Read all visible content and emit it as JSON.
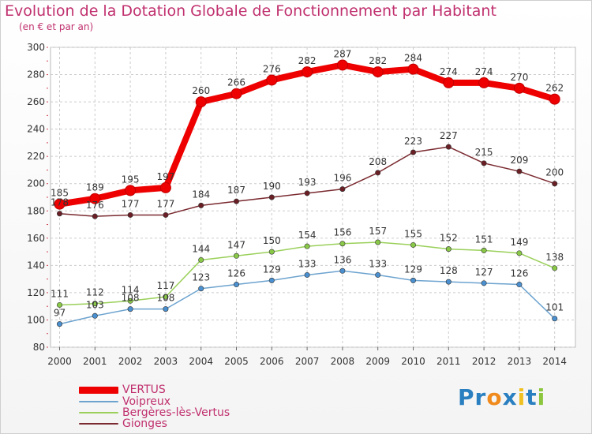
{
  "title": "Evolution de la Dotation Globale de Fonctionnement par Habitant",
  "subtitle": "(en € et par an)",
  "brand": {
    "parts": [
      "Pr",
      "o",
      "x",
      "i",
      "t",
      "i"
    ],
    "colors": [
      "#2a7fc0",
      "#f08a1c",
      "#2a7fc0",
      "#f0c020",
      "#2a7fc0",
      "#8cc63f"
    ]
  },
  "chart_data": {
    "type": "line",
    "x": [
      2000,
      2001,
      2002,
      2003,
      2004,
      2005,
      2006,
      2007,
      2008,
      2009,
      2010,
      2011,
      2012,
      2013,
      2014
    ],
    "ylim": [
      80,
      300
    ],
    "yticks": [
      80,
      100,
      120,
      140,
      160,
      180,
      200,
      220,
      240,
      260,
      280,
      300
    ],
    "grid": true,
    "legend_position": "bottom-left",
    "series": [
      {
        "name": "VERTUS",
        "color": "#ee0000",
        "values": [
          185,
          189,
          195,
          197,
          260,
          266,
          276,
          282,
          287,
          282,
          284,
          274,
          274,
          270,
          262
        ]
      },
      {
        "name": "Voipreux",
        "color": "#6da3cf",
        "values": [
          97,
          103,
          108,
          108,
          123,
          126,
          129,
          133,
          136,
          133,
          129,
          128,
          127,
          126,
          101
        ]
      },
      {
        "name": "Bergères-lès-Vertus",
        "color": "#9ad05a",
        "values": [
          111,
          112,
          114,
          117,
          144,
          147,
          150,
          154,
          156,
          157,
          155,
          152,
          151,
          149,
          138
        ]
      },
      {
        "name": "Gionges",
        "color": "#7a2a30",
        "values": [
          178,
          176,
          177,
          177,
          184,
          187,
          190,
          193,
          196,
          208,
          223,
          227,
          215,
          209,
          200
        ]
      }
    ]
  }
}
